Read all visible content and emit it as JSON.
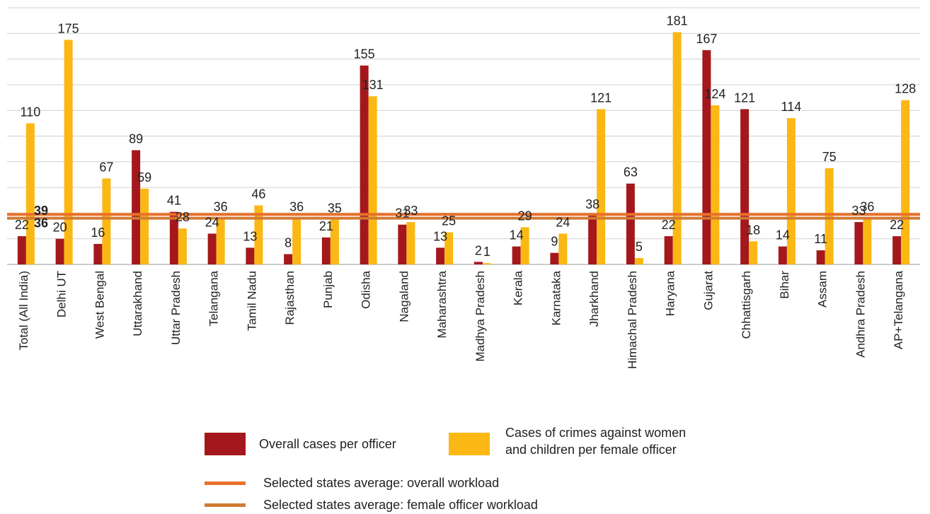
{
  "chart_data": {
    "type": "bar",
    "categories": [
      "Total (All India)",
      "Delhi UT",
      "West Bengal",
      "Uttarakhand",
      "Uttar Pradesh",
      "Telangana",
      "Tamil Nadu",
      "Rajasthan",
      "Punjab",
      "Odisha",
      "Nagaland",
      "Maharashtra",
      "Madhya Pradesh",
      "Kerala",
      "Karnataka",
      "Jharkhand",
      "Himachal Pradesh",
      "Haryana",
      "Gujarat",
      "Chhattisgarh",
      "Bihar",
      "Assam",
      "Andhra Pradesh",
      "AP+Telangana"
    ],
    "series": [
      {
        "name": "Overall cases per officer",
        "color": "#a4181d",
        "values": [
          22,
          20,
          16,
          89,
          41,
          24,
          13,
          8,
          21,
          155,
          31,
          13,
          2,
          14,
          9,
          38,
          63,
          22,
          167,
          121,
          14,
          11,
          33,
          22
        ]
      },
      {
        "name": "Cases of crimes against women and children per female officer",
        "color": "#fbb814",
        "values": [
          110,
          175,
          67,
          59,
          28,
          36,
          46,
          36,
          35,
          131,
          33,
          25,
          1,
          29,
          24,
          121,
          5,
          181,
          124,
          18,
          114,
          75,
          36,
          128
        ]
      }
    ],
    "reference_lines": [
      {
        "name": "Selected states average: overall workload",
        "value": 39,
        "label": "39",
        "color": "#e8712b"
      },
      {
        "name": "Selected states average: female officer workload",
        "value": 36,
        "label": "36",
        "color": "#d07a35"
      }
    ],
    "ylim": [
      0,
      200
    ],
    "grid": true,
    "legend_position": "bottom"
  },
  "legend": {
    "overall_label": "Overall cases per officer",
    "women_label_line1": "Cases of crimes against women",
    "women_label_line2": "and children per female officer",
    "avg_overall_label": "Selected states average: overall workload",
    "avg_female_label": "Selected states average: female officer workload"
  }
}
